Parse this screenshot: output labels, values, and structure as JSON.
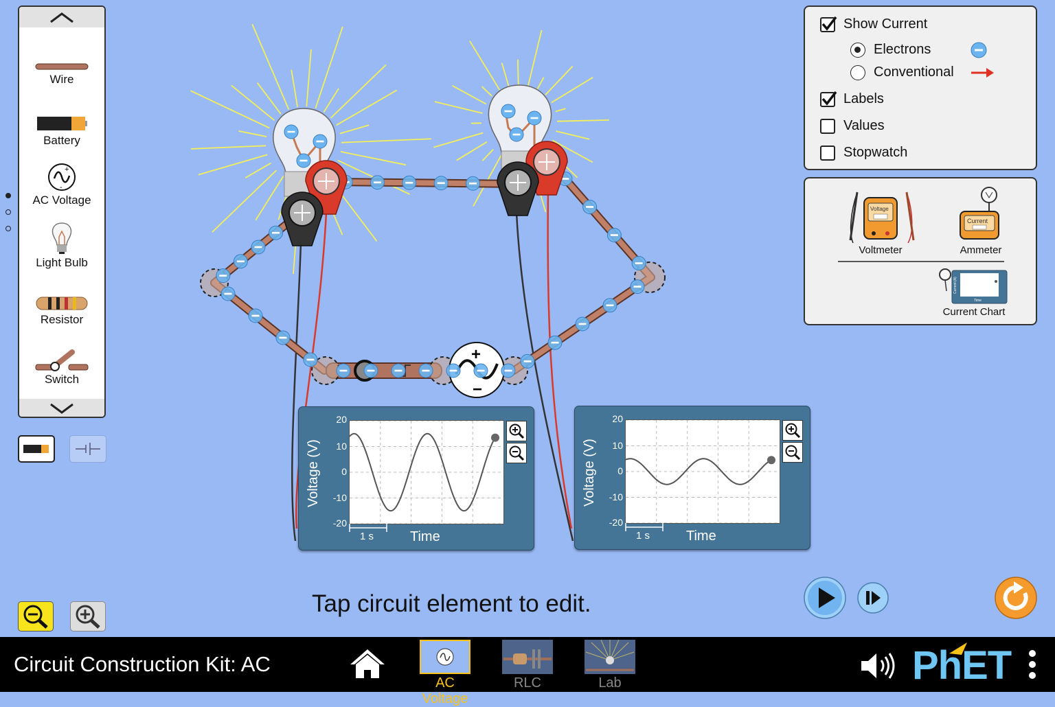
{
  "toolbox": {
    "items": [
      {
        "label": "Wire",
        "icon": "wire-icon"
      },
      {
        "label": "Battery",
        "icon": "battery-icon"
      },
      {
        "label": "AC Voltage",
        "icon": "ac-voltage-icon"
      },
      {
        "label": "Light Bulb",
        "icon": "light-bulb-icon"
      },
      {
        "label": "Resistor",
        "icon": "resistor-icon"
      },
      {
        "label": "Switch",
        "icon": "switch-icon"
      }
    ],
    "page_count": 3,
    "active_page": 1
  },
  "view_options": {
    "show_current": {
      "label": "Show Current",
      "checked": true
    },
    "electrons": {
      "label": "Electrons",
      "selected": true
    },
    "conventional": {
      "label": "Conventional",
      "selected": false
    },
    "labels": {
      "label": "Labels",
      "checked": true
    },
    "values": {
      "label": "Values",
      "checked": false
    },
    "stopwatch": {
      "label": "Stopwatch",
      "checked": false
    }
  },
  "sensors": {
    "voltmeter": {
      "label": "Voltmeter",
      "screen_text": "Voltage"
    },
    "ammeter": {
      "label": "Ammeter",
      "screen_text": "Current"
    },
    "current_chart": {
      "label": "Current Chart",
      "axis_y": "Current (A)",
      "axis_x": "Time"
    }
  },
  "chart_data": [
    {
      "type": "line",
      "title": "",
      "ylabel": "Voltage (V)",
      "xlabel": "Time",
      "ylim": [
        -20,
        20
      ],
      "yticks": [
        "20",
        "10",
        "0",
        "-10",
        "-20"
      ],
      "time_scale_label": "1 s",
      "series": [
        {
          "amplitude": 15,
          "cycles": 2.1,
          "phase_deg": 68
        }
      ],
      "grid": true
    },
    {
      "type": "line",
      "title": "",
      "ylabel": "Voltage (V)",
      "xlabel": "Time",
      "ylim": [
        -20,
        20
      ],
      "yticks": [
        "20",
        "10",
        "0",
        "-10",
        "-20"
      ],
      "time_scale_label": "1 s",
      "series": [
        {
          "amplitude": 5,
          "cycles": 2.1,
          "phase_deg": 68,
          "offset": 0
        }
      ],
      "grid": true
    }
  ],
  "status": {
    "hint": "Tap circuit element to edit."
  },
  "navbar": {
    "title": "Circuit Construction Kit: AC",
    "tabs": [
      {
        "label": "AC Voltage",
        "active": true
      },
      {
        "label": "RLC",
        "active": false
      },
      {
        "label": "Lab",
        "active": false
      }
    ],
    "brand": "PhET"
  },
  "colors": {
    "background": "#99b9f5",
    "electron": "#6cb4ef",
    "active_tab": "#f7c21a",
    "probe_red": "#d93a2a",
    "probe_black": "#333333",
    "reset": "#f59a2d"
  }
}
